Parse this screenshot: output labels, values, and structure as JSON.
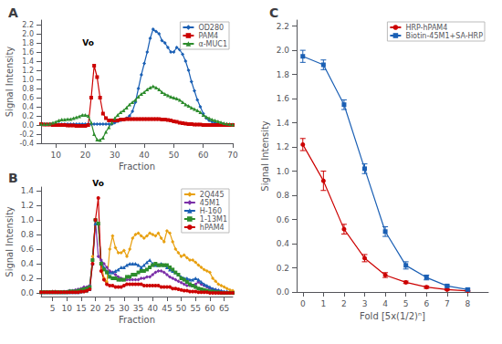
{
  "chart_data": [
    {
      "type": "line",
      "title": "A",
      "xlabel": "Fraction",
      "ylabel": "Signal Intensity",
      "xlim": [
        5,
        70
      ],
      "ylim": [
        -0.4,
        2.3
      ],
      "xticks": [
        10,
        20,
        30,
        40,
        50,
        60,
        70
      ],
      "yticks": [
        -0.4,
        -0.2,
        {
          "value": 0.0,
          "label": "0.0"
        },
        0.2,
        0.4,
        0.6,
        0.8,
        {
          "value": 1.0,
          "label": "1.0"
        },
        1.2,
        1.4,
        1.6,
        1.8,
        {
          "value": 2.0,
          "label": "2.0"
        },
        2.2
      ],
      "legend": "upper right",
      "grid": false,
      "annotations": [
        {
          "text": "Vo",
          "x": 21,
          "y": 1.62
        }
      ],
      "x": [
        5,
        6,
        7,
        8,
        9,
        10,
        11,
        12,
        13,
        14,
        15,
        16,
        17,
        18,
        19,
        20,
        21,
        22,
        23,
        24,
        25,
        26,
        27,
        28,
        29,
        30,
        31,
        32,
        33,
        34,
        35,
        36,
        37,
        38,
        39,
        40,
        41,
        42,
        43,
        44,
        45,
        46,
        47,
        48,
        49,
        50,
        51,
        52,
        53,
        54,
        55,
        56,
        57,
        58,
        59,
        60,
        61,
        62,
        63,
        64,
        65,
        66,
        67,
        68,
        69,
        70
      ],
      "series": [
        {
          "name": "OD280",
          "color": "#1a5fb4",
          "marker": "diamond",
          "values": [
            0.02,
            0.02,
            0.02,
            0.02,
            0.02,
            0.02,
            0.02,
            0.02,
            0.02,
            0.02,
            0.02,
            0.02,
            0.02,
            0.02,
            0.02,
            0.02,
            0.02,
            0.02,
            0.02,
            0.02,
            0.02,
            0.02,
            0.02,
            0.02,
            0.02,
            0.05,
            0.08,
            0.1,
            0.12,
            0.15,
            0.2,
            0.3,
            0.5,
            0.8,
            1.1,
            1.35,
            1.6,
            1.9,
            2.1,
            2.05,
            2.0,
            1.85,
            1.8,
            1.7,
            1.6,
            1.6,
            1.7,
            1.65,
            1.55,
            1.4,
            1.2,
            0.95,
            0.75,
            0.55,
            0.4,
            0.25,
            0.15,
            0.1,
            0.07,
            0.05,
            0.03,
            0.02,
            0.02,
            0.01,
            0.01,
            0.01
          ]
        },
        {
          "name": "PAM4",
          "color": "#cc0000",
          "marker": "square",
          "values": [
            0.02,
            0.01,
            0.01,
            0.01,
            0.0,
            0.0,
            0.0,
            0.0,
            0.0,
            -0.01,
            -0.01,
            -0.01,
            -0.02,
            -0.02,
            -0.02,
            -0.02,
            0.0,
            0.6,
            1.3,
            1.05,
            0.6,
            0.25,
            0.15,
            0.1,
            0.1,
            0.1,
            0.1,
            0.12,
            0.12,
            0.13,
            0.13,
            0.13,
            0.13,
            0.13,
            0.13,
            0.13,
            0.13,
            0.13,
            0.13,
            0.13,
            0.13,
            0.12,
            0.12,
            0.11,
            0.1,
            0.08,
            0.07,
            0.05,
            0.04,
            0.03,
            0.02,
            0.02,
            0.01,
            0.01,
            0.01,
            0.0,
            0.0,
            0.0,
            0.0,
            0.0,
            0.0,
            0.0,
            0.0,
            0.0,
            0.0,
            0.0
          ]
        },
        {
          "name": "α-MUC1",
          "color": "#2d8c2d",
          "marker": "triangle",
          "values": [
            0.02,
            0.02,
            0.02,
            0.03,
            0.05,
            0.07,
            0.1,
            0.12,
            0.12,
            0.13,
            0.13,
            0.15,
            0.17,
            0.19,
            0.22,
            0.22,
            0.2,
            0.05,
            -0.2,
            -0.32,
            -0.33,
            -0.28,
            -0.15,
            -0.05,
            0.05,
            0.15,
            0.22,
            0.28,
            0.32,
            0.38,
            0.45,
            0.5,
            0.55,
            0.62,
            0.68,
            0.72,
            0.78,
            0.82,
            0.85,
            0.82,
            0.78,
            0.72,
            0.68,
            0.65,
            0.62,
            0.6,
            0.58,
            0.55,
            0.5,
            0.45,
            0.42,
            0.38,
            0.35,
            0.32,
            0.28,
            0.22,
            0.18,
            0.15,
            0.12,
            0.1,
            0.08,
            0.06,
            0.04,
            0.03,
            0.02,
            0.01
          ]
        }
      ]
    },
    {
      "type": "line",
      "title": "B",
      "xlabel": "Fraction",
      "ylabel": "Signal Intensity",
      "xlim": [
        1,
        68
      ],
      "ylim": [
        -0.05,
        1.45
      ],
      "xticks": [
        5,
        10,
        15,
        20,
        25,
        30,
        35,
        40,
        45,
        50,
        55,
        60,
        65
      ],
      "yticks": [
        {
          "value": 0.0,
          "label": "0.0"
        },
        0.2,
        0.4,
        0.6,
        0.8,
        {
          "value": 1.0,
          "label": "1.0"
        },
        1.2,
        1.4
      ],
      "legend": "upper right",
      "grid": false,
      "annotations": [
        {
          "text": "Vo",
          "x": 21,
          "y": 1.38
        }
      ],
      "x": [
        1,
        2,
        3,
        4,
        5,
        6,
        7,
        8,
        9,
        10,
        11,
        12,
        13,
        14,
        15,
        16,
        17,
        18,
        19,
        20,
        21,
        22,
        23,
        24,
        25,
        26,
        27,
        28,
        29,
        30,
        31,
        32,
        33,
        34,
        35,
        36,
        37,
        38,
        39,
        40,
        41,
        42,
        43,
        44,
        45,
        46,
        47,
        48,
        49,
        50,
        51,
        52,
        53,
        54,
        55,
        56,
        57,
        58,
        59,
        60,
        61,
        62,
        63,
        64,
        65,
        66,
        67,
        68
      ],
      "series": [
        {
          "name": "2Q445",
          "color": "#e8a010",
          "marker": "diamond",
          "values": [
            0.01,
            0.01,
            0.01,
            0.01,
            0.02,
            0.02,
            0.01,
            0.01,
            0.01,
            0.01,
            0.01,
            0.01,
            0.01,
            0.01,
            0.01,
            0.02,
            0.02,
            0.05,
            0.5,
            1.0,
            0.95,
            0.4,
            0.2,
            0.15,
            0.6,
            0.78,
            0.62,
            0.55,
            0.55,
            0.58,
            0.5,
            0.6,
            0.75,
            0.8,
            0.82,
            0.78,
            0.75,
            0.78,
            0.82,
            0.8,
            0.78,
            0.82,
            0.75,
            0.7,
            0.85,
            0.82,
            0.7,
            0.6,
            0.55,
            0.5,
            0.52,
            0.48,
            0.45,
            0.45,
            0.42,
            0.38,
            0.35,
            0.32,
            0.3,
            0.28,
            0.2,
            0.16,
            0.12,
            0.1,
            0.08,
            0.06,
            0.04,
            0.03
          ]
        },
        {
          "name": "45M1",
          "color": "#7b2fa8",
          "marker": "diamond",
          "values": [
            0.01,
            0.01,
            0.01,
            0.01,
            0.02,
            0.02,
            0.01,
            0.01,
            0.02,
            0.02,
            0.03,
            0.03,
            0.04,
            0.05,
            0.06,
            0.08,
            0.08,
            0.1,
            0.45,
            1.0,
            0.5,
            0.45,
            0.4,
            0.35,
            0.3,
            0.28,
            0.25,
            0.22,
            0.2,
            0.18,
            0.18,
            0.18,
            0.18,
            0.18,
            0.18,
            0.2,
            0.2,
            0.22,
            0.22,
            0.25,
            0.28,
            0.3,
            0.3,
            0.28,
            0.25,
            0.22,
            0.2,
            0.18,
            0.16,
            0.14,
            0.12,
            0.1,
            0.1,
            0.1,
            0.12,
            0.15,
            0.12,
            0.1,
            0.08,
            0.06,
            0.05,
            0.04,
            0.03,
            0.02,
            0.01,
            0.01,
            0.0,
            0.0
          ]
        },
        {
          "name": "H-160",
          "color": "#1a5fb4",
          "marker": "triangle",
          "values": [
            0.01,
            0.01,
            0.01,
            0.01,
            0.01,
            0.01,
            0.01,
            0.01,
            0.01,
            0.01,
            0.01,
            0.01,
            0.01,
            0.01,
            0.02,
            0.03,
            0.03,
            0.05,
            0.4,
            0.95,
            0.95,
            0.42,
            0.35,
            0.3,
            0.28,
            0.28,
            0.3,
            0.32,
            0.35,
            0.35,
            0.38,
            0.4,
            0.4,
            0.4,
            0.38,
            0.35,
            0.38,
            0.42,
            0.45,
            0.4,
            0.38,
            0.38,
            0.4,
            0.38,
            0.35,
            0.32,
            0.3,
            0.28,
            0.25,
            0.22,
            0.2,
            0.2,
            0.18,
            0.18,
            0.2,
            0.18,
            0.15,
            0.12,
            0.1,
            0.08,
            0.06,
            0.05,
            0.04,
            0.03,
            0.02,
            0.02,
            0.01,
            0.01
          ]
        },
        {
          "name": "1-13M1",
          "color": "#2d8c2d",
          "marker": "square",
          "values": [
            0.01,
            0.01,
            0.01,
            0.01,
            0.01,
            0.01,
            0.01,
            0.01,
            0.01,
            0.01,
            0.02,
            0.02,
            0.02,
            0.03,
            0.04,
            0.05,
            0.06,
            0.08,
            0.45,
            1.0,
            0.95,
            0.4,
            0.32,
            0.28,
            0.22,
            0.2,
            0.2,
            0.18,
            0.18,
            0.18,
            0.22,
            0.22,
            0.25,
            0.25,
            0.28,
            0.3,
            0.3,
            0.32,
            0.35,
            0.38,
            0.4,
            0.38,
            0.38,
            0.38,
            0.38,
            0.35,
            0.32,
            0.28,
            0.25,
            0.2,
            0.18,
            0.15,
            0.12,
            0.1,
            0.08,
            0.06,
            0.05,
            0.04,
            0.03,
            0.02,
            0.02,
            0.01,
            0.01,
            0.0,
            0.0,
            0.0,
            0.0,
            0.0
          ]
        },
        {
          "name": "hPAM4",
          "color": "#cc0000",
          "marker": "circle",
          "values": [
            0.01,
            0.01,
            0.01,
            0.01,
            0.01,
            0.01,
            0.01,
            0.01,
            0.01,
            0.01,
            0.01,
            0.01,
            0.01,
            0.01,
            0.02,
            0.02,
            0.03,
            0.05,
            0.4,
            1.0,
            1.3,
            0.3,
            0.18,
            0.12,
            0.1,
            0.1,
            0.08,
            0.08,
            0.08,
            0.1,
            0.12,
            0.12,
            0.12,
            0.12,
            0.12,
            0.12,
            0.1,
            0.1,
            0.1,
            0.1,
            0.1,
            0.1,
            0.08,
            0.08,
            0.08,
            0.08,
            0.06,
            0.06,
            0.05,
            0.04,
            0.03,
            0.03,
            0.02,
            0.02,
            0.02,
            0.01,
            0.01,
            0.01,
            0.01,
            0.0,
            0.0,
            0.0,
            0.0,
            0.0,
            0.0,
            0.0,
            0.0,
            0.0
          ]
        }
      ]
    },
    {
      "type": "line",
      "title": "C",
      "xlabel": "Fold [5x(1/2)ⁿ]",
      "ylabel": "Signal Intensity",
      "xlim": [
        -0.3,
        9
      ],
      "ylim": [
        0.0,
        2.25
      ],
      "xticks": [
        0,
        1,
        2,
        3,
        4,
        5,
        6,
        7,
        8
      ],
      "yticks": [
        {
          "value": 0.0,
          "label": "0.0"
        },
        0.2,
        0.4,
        0.6,
        0.8,
        {
          "value": 1.0,
          "label": "1.0"
        },
        1.2,
        1.4,
        1.6,
        1.8,
        {
          "value": 2.0,
          "label": "2.0"
        },
        2.2
      ],
      "legend": "upper right",
      "grid": false,
      "x": [
        0,
        1,
        2,
        3,
        4,
        5,
        6,
        7,
        8
      ],
      "series": [
        {
          "name": "HRP-hPAM4",
          "color": "#cc0000",
          "marker": "circle",
          "values": [
            1.22,
            0.92,
            0.52,
            0.28,
            0.14,
            0.08,
            0.04,
            0.02,
            0.01
          ],
          "yerr": [
            0.05,
            0.08,
            0.04,
            0.03,
            0.02,
            0.01,
            0.01,
            0.005,
            0.005
          ]
        },
        {
          "name": "Biotin-45M1+SA-HRP",
          "color": "#1a5fb4",
          "marker": "square",
          "values": [
            1.95,
            1.88,
            1.55,
            1.02,
            0.5,
            0.22,
            0.12,
            0.05,
            0.02
          ],
          "yerr": [
            0.05,
            0.04,
            0.04,
            0.04,
            0.04,
            0.03,
            0.02,
            0.01,
            0.01
          ]
        }
      ]
    }
  ]
}
